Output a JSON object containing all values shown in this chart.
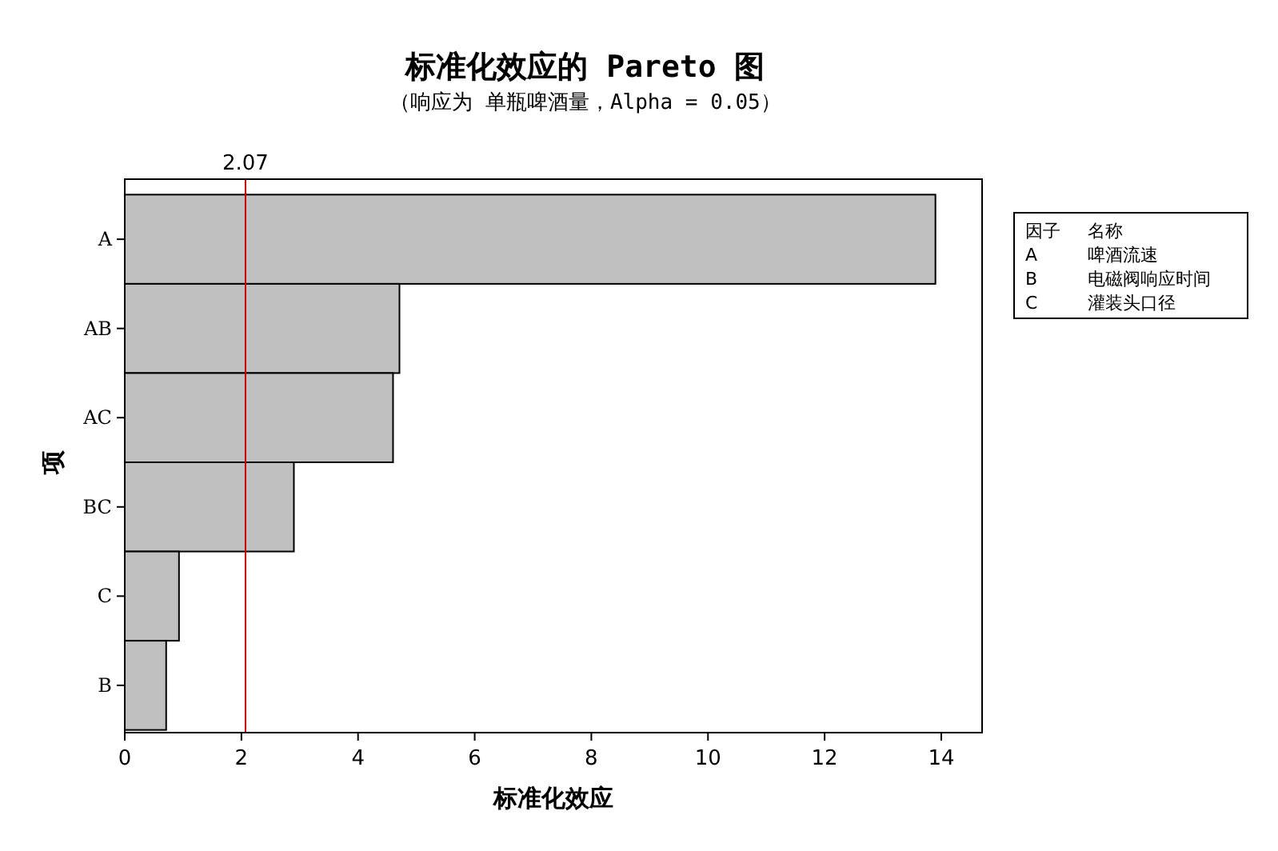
{
  "chart_data": {
    "type": "bar",
    "orientation": "horizontal",
    "title": "标准化效应的 Pareto 图",
    "subtitle": "（响应为 单瓶啤酒量，Alpha =  0.05）",
    "xlabel": "标准化效应",
    "ylabel": "项",
    "categories": [
      "A",
      "AB",
      "AC",
      "BC",
      "C",
      "B"
    ],
    "values": [
      13.9,
      4.71,
      4.6,
      2.9,
      0.93,
      0.71
    ],
    "color": "#c0c0c0",
    "xlim": [
      0,
      14.7
    ],
    "xticks": [
      0,
      2,
      4,
      6,
      8,
      10,
      12,
      14
    ],
    "ref_lines": [
      {
        "axis": "x",
        "value": 2.07,
        "label": "2.07",
        "color": "#cc0000"
      }
    ],
    "annotations": [
      "因子",
      "名称",
      "A",
      "啤酒流速",
      "B",
      "电磁阀响应时间",
      "C",
      "灌装头口径"
    ],
    "grid": false
  }
}
